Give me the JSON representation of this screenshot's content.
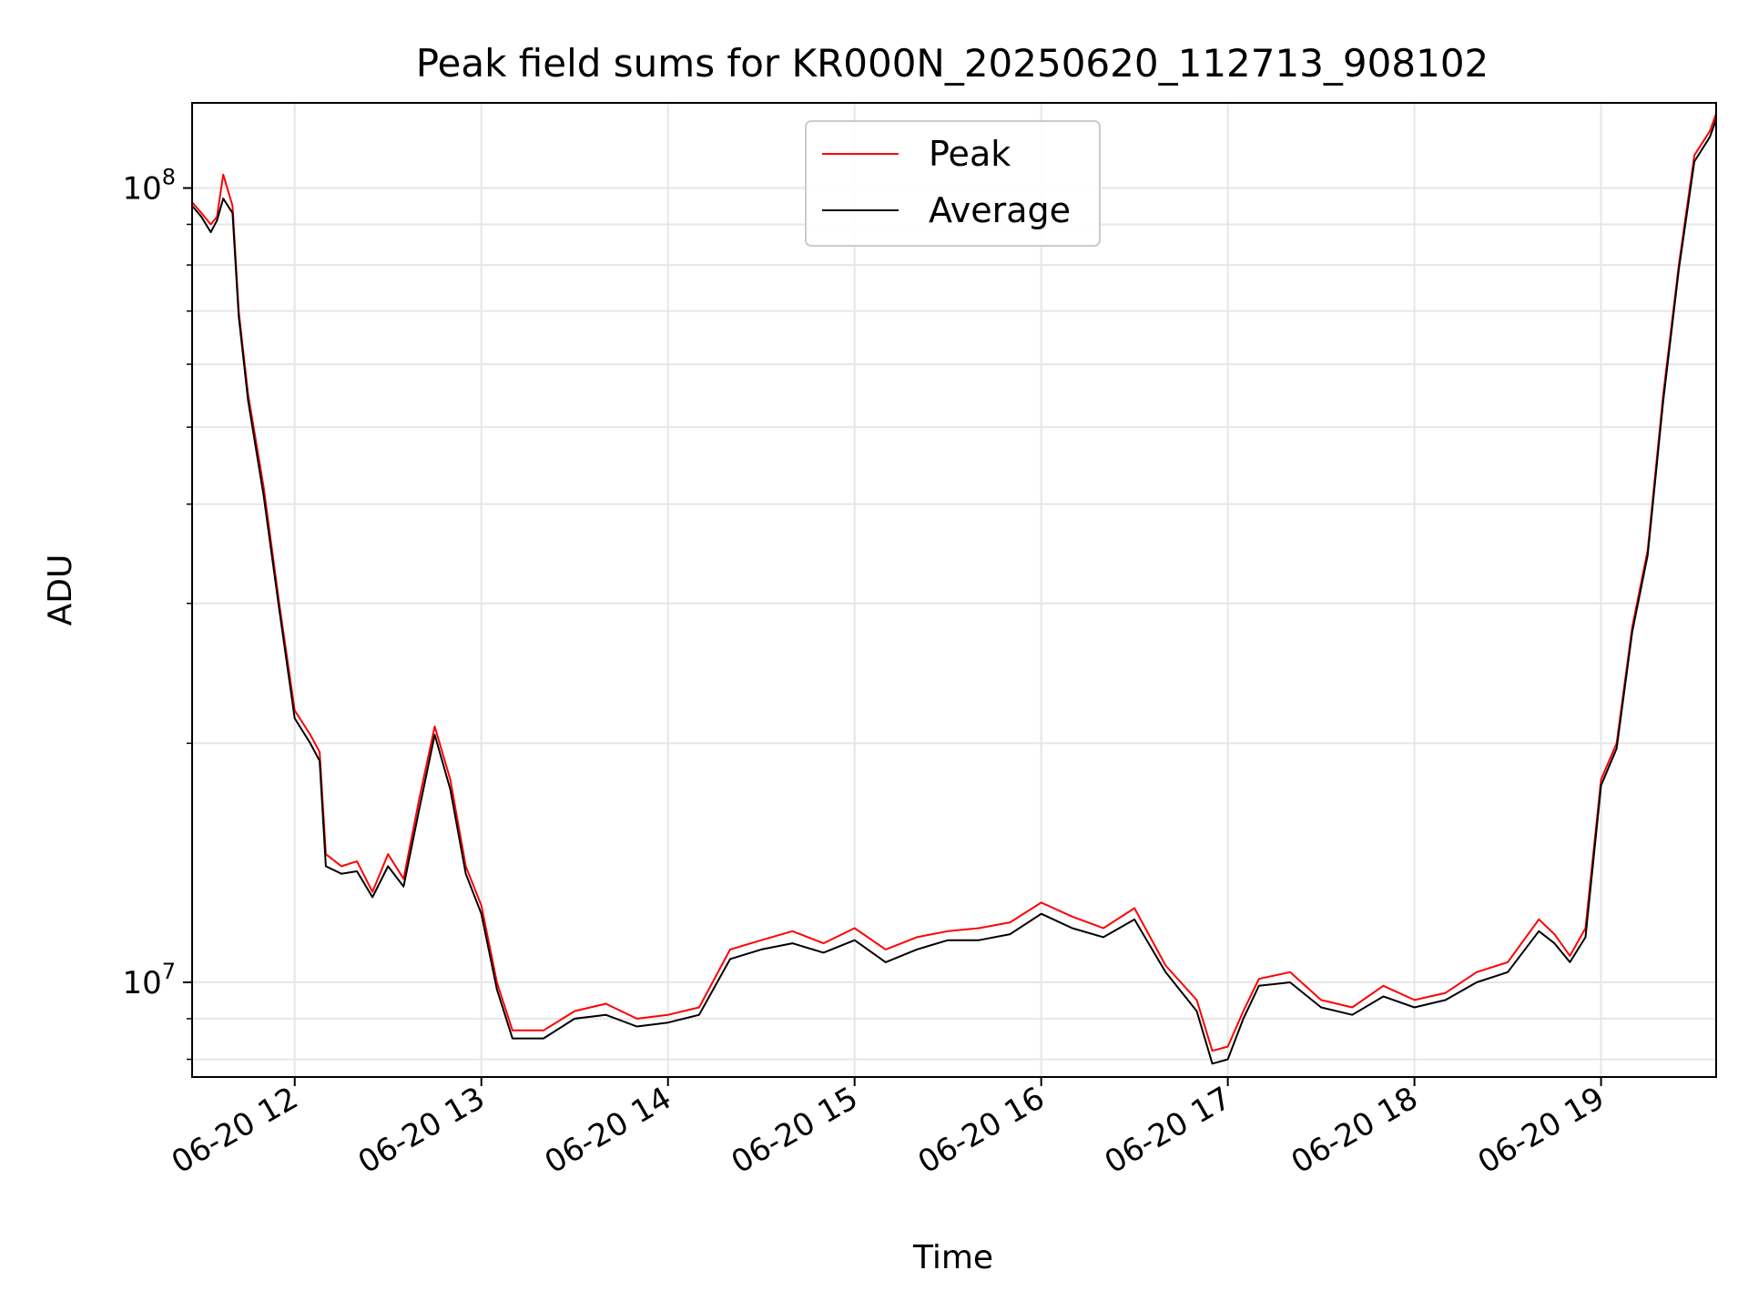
{
  "chart_data": {
    "type": "line",
    "title": "Peak field sums for KR000N_20250620_112713_908102",
    "xlabel": "Time",
    "ylabel": "ADU",
    "x_scale": "time",
    "y_scale": "log",
    "xlim": [
      "2025-06-20T11:27:00",
      "2025-06-20T19:37:00"
    ],
    "ylim": [
      7600000,
      128000000
    ],
    "grid": true,
    "legend_position": "upper center",
    "x_ticks": [
      {
        "t": "2025-06-20T12:00:00",
        "label": "06-20 12"
      },
      {
        "t": "2025-06-20T13:00:00",
        "label": "06-20 13"
      },
      {
        "t": "2025-06-20T14:00:00",
        "label": "06-20 14"
      },
      {
        "t": "2025-06-20T15:00:00",
        "label": "06-20 15"
      },
      {
        "t": "2025-06-20T16:00:00",
        "label": "06-20 16"
      },
      {
        "t": "2025-06-20T17:00:00",
        "label": "06-20 17"
      },
      {
        "t": "2025-06-20T18:00:00",
        "label": "06-20 18"
      },
      {
        "t": "2025-06-20T19:00:00",
        "label": "06-20 19"
      }
    ],
    "y_major_ticks": [
      {
        "value": 10000000,
        "base": "10",
        "exp": "7"
      },
      {
        "value": 100000000,
        "base": "10",
        "exp": "8"
      }
    ],
    "y_minor_ticks": [
      8000000,
      9000000,
      20000000,
      30000000,
      40000000,
      50000000,
      60000000,
      70000000,
      80000000,
      90000000
    ],
    "x": [
      "11:27",
      "11:30",
      "11:33",
      "11:35",
      "11:37",
      "11:40",
      "11:42",
      "11:45",
      "11:50",
      "11:55",
      "12:00",
      "12:05",
      "12:08",
      "12:10",
      "12:15",
      "12:20",
      "12:25",
      "12:30",
      "12:35",
      "12:40",
      "12:45",
      "12:50",
      "12:55",
      "13:00",
      "13:05",
      "13:10",
      "13:20",
      "13:30",
      "13:40",
      "13:50",
      "14:00",
      "14:10",
      "14:20",
      "14:30",
      "14:40",
      "14:50",
      "15:00",
      "15:10",
      "15:20",
      "15:30",
      "15:40",
      "15:50",
      "16:00",
      "16:10",
      "16:20",
      "16:30",
      "16:40",
      "16:50",
      "16:55",
      "17:00",
      "17:05",
      "17:10",
      "17:20",
      "17:30",
      "17:40",
      "17:50",
      "18:00",
      "18:10",
      "18:20",
      "18:30",
      "18:40",
      "18:45",
      "18:50",
      "18:55",
      "19:00",
      "19:05",
      "19:10",
      "19:15",
      "19:20",
      "19:25",
      "19:30",
      "19:35",
      "19:37"
    ],
    "series": [
      {
        "name": "Peak",
        "color": "#ff0000",
        "values": [
          96000000,
          93000000,
          90000000,
          92000000,
          104000000,
          95000000,
          70000000,
          55000000,
          42000000,
          30000000,
          22000000,
          20500000,
          19500000,
          14500000,
          14000000,
          14200000,
          13000000,
          14500000,
          13500000,
          17000000,
          21000000,
          18000000,
          14000000,
          12500000,
          10000000,
          8700000,
          8700000,
          9200000,
          9400000,
          9000000,
          9100000,
          9300000,
          11000000,
          11300000,
          11600000,
          11200000,
          11700000,
          11000000,
          11400000,
          11600000,
          11700000,
          11900000,
          12600000,
          12100000,
          11700000,
          12400000,
          10500000,
          9500000,
          8200000,
          8300000,
          9200000,
          10100000,
          10300000,
          9500000,
          9300000,
          9900000,
          9500000,
          9700000,
          10300000,
          10600000,
          12000000,
          11500000,
          10800000,
          11700000,
          18000000,
          20000000,
          28000000,
          35000000,
          55000000,
          80000000,
          110000000,
          118000000,
          124000000
        ]
      },
      {
        "name": "Average",
        "color": "#000000",
        "values": [
          95000000,
          92000000,
          88000000,
          91000000,
          97000000,
          93000000,
          69000000,
          54000000,
          41000000,
          29500000,
          21500000,
          20000000,
          19000000,
          14000000,
          13700000,
          13800000,
          12800000,
          14000000,
          13200000,
          16500000,
          20500000,
          17500000,
          13700000,
          12200000,
          9800000,
          8500000,
          8500000,
          9000000,
          9100000,
          8800000,
          8900000,
          9100000,
          10700000,
          11000000,
          11200000,
          10900000,
          11300000,
          10600000,
          11000000,
          11300000,
          11300000,
          11500000,
          12200000,
          11700000,
          11400000,
          12000000,
          10300000,
          9200000,
          7900000,
          8000000,
          9000000,
          9900000,
          10000000,
          9300000,
          9100000,
          9600000,
          9300000,
          9500000,
          10000000,
          10300000,
          11600000,
          11200000,
          10600000,
          11400000,
          17700000,
          19700000,
          27600000,
          34500000,
          54000000,
          79000000,
          108000000,
          116000000,
          122000000
        ]
      }
    ]
  }
}
